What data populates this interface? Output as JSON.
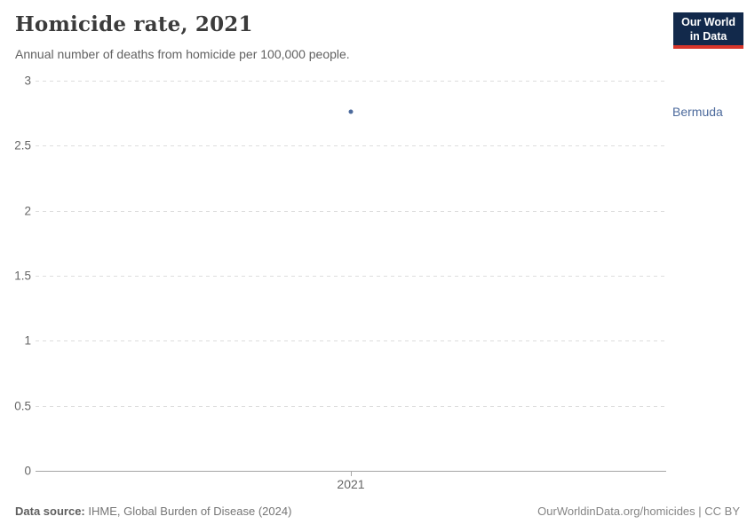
{
  "header": {
    "title": "Homicide rate, 2021",
    "subtitle": "Annual number of deaths from homicide per 100,000 people."
  },
  "logo": {
    "line1": "Our World",
    "line2": "in Data"
  },
  "chart_data": {
    "type": "scatter",
    "title": "Homicide rate, 2021",
    "subtitle": "Annual number of deaths from homicide per 100,000 people.",
    "x": [
      2021
    ],
    "series": [
      {
        "name": "Bermuda",
        "values": [
          2.76
        ]
      }
    ],
    "xlabel": "",
    "ylabel": "",
    "ylim": [
      0,
      3
    ],
    "yticks": [
      0,
      0.5,
      1,
      1.5,
      2,
      2.5,
      3
    ],
    "xtick_labels": [
      "2021"
    ],
    "grid": "horizontal-dashed",
    "legend_position": "entity-label-right-of-plot"
  },
  "footer": {
    "source_prefix": "Data source:",
    "source_text": "IHME, Global Burden of Disease (2024)",
    "credit": "OurWorldinData.org/homicides | CC BY"
  },
  "colors": {
    "accent_blue": "#4c6a9c",
    "logo_navy": "#12294b",
    "logo_red": "#d8352a",
    "gridline": "#dddddd",
    "axis": "#a5a5a5",
    "tick_text": "#666666",
    "title_text": "#3b3b3b"
  }
}
